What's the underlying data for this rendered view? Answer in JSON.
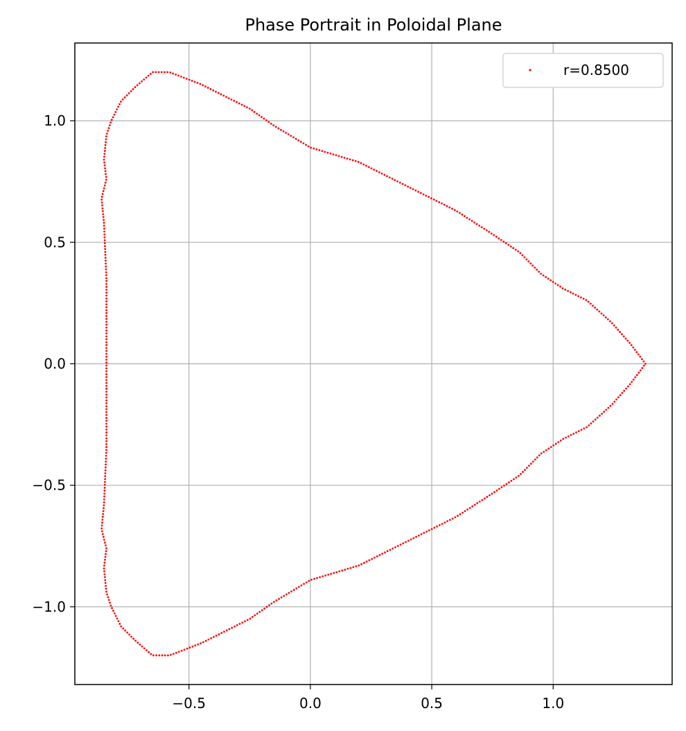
{
  "chart_data": {
    "type": "scatter",
    "title": "Phase Portrait in Poloidal Plane",
    "xlabel": "",
    "ylabel": "",
    "xlim": [
      -0.97,
      1.49
    ],
    "ylim": [
      -1.32,
      1.32
    ],
    "xticks": [
      -0.5,
      0.0,
      0.5,
      1.0
    ],
    "xtick_labels": [
      "−0.5",
      "0.0",
      "0.5",
      "1.0"
    ],
    "yticks": [
      -1.0,
      -0.5,
      0.0,
      0.5,
      1.0
    ],
    "ytick_labels": [
      "−1.0",
      "−0.5",
      "0.0",
      "0.5",
      "1.0"
    ],
    "grid": true,
    "legend_position": "top-right",
    "series": [
      {
        "name": "r=0.8500",
        "color": "#ff0000",
        "marker": "point",
        "outline": [
          [
            1.38,
            0.0
          ],
          [
            1.32,
            0.08
          ],
          [
            1.24,
            0.17
          ],
          [
            1.14,
            0.26
          ],
          [
            1.04,
            0.31
          ],
          [
            0.95,
            0.37
          ],
          [
            0.86,
            0.46
          ],
          [
            0.74,
            0.54
          ],
          [
            0.6,
            0.63
          ],
          [
            0.4,
            0.73
          ],
          [
            0.2,
            0.83
          ],
          [
            0.0,
            0.89
          ],
          [
            -0.15,
            0.98
          ],
          [
            -0.25,
            1.05
          ],
          [
            -0.35,
            1.1
          ],
          [
            -0.45,
            1.15
          ],
          [
            -0.58,
            1.2
          ],
          [
            -0.65,
            1.2
          ],
          [
            -0.72,
            1.14
          ],
          [
            -0.78,
            1.08
          ],
          [
            -0.82,
            1.0
          ],
          [
            -0.84,
            0.94
          ],
          [
            -0.85,
            0.84
          ],
          [
            -0.84,
            0.76
          ],
          [
            -0.86,
            0.68
          ],
          [
            -0.85,
            0.58
          ],
          [
            -0.84,
            0.35
          ],
          [
            -0.84,
            0.0
          ],
          [
            -0.84,
            -0.35
          ],
          [
            -0.85,
            -0.58
          ],
          [
            -0.86,
            -0.68
          ],
          [
            -0.84,
            -0.76
          ],
          [
            -0.85,
            -0.84
          ],
          [
            -0.84,
            -0.94
          ],
          [
            -0.82,
            -1.0
          ],
          [
            -0.78,
            -1.08
          ],
          [
            -0.72,
            -1.14
          ],
          [
            -0.65,
            -1.2
          ],
          [
            -0.58,
            -1.2
          ],
          [
            -0.45,
            -1.15
          ],
          [
            -0.35,
            -1.1
          ],
          [
            -0.25,
            -1.05
          ],
          [
            -0.15,
            -0.98
          ],
          [
            0.0,
            -0.89
          ],
          [
            0.2,
            -0.83
          ],
          [
            0.4,
            -0.73
          ],
          [
            0.6,
            -0.63
          ],
          [
            0.74,
            -0.54
          ],
          [
            0.86,
            -0.46
          ],
          [
            0.95,
            -0.37
          ],
          [
            1.04,
            -0.31
          ],
          [
            1.14,
            -0.26
          ],
          [
            1.24,
            -0.17
          ],
          [
            1.32,
            -0.08
          ],
          [
            1.38,
            0.0
          ]
        ]
      }
    ]
  }
}
